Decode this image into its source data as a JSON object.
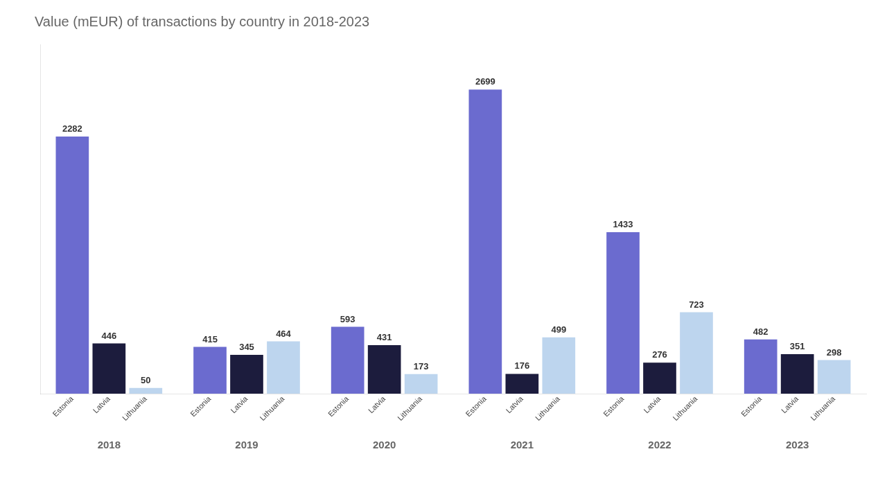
{
  "chart_data": {
    "type": "bar",
    "title": "Value (mEUR) of transactions by country in 2018-2023",
    "categories": [
      "2018",
      "2019",
      "2020",
      "2021",
      "2022",
      "2023"
    ],
    "series": [
      {
        "name": "Estonia",
        "color": "#6B6BCF",
        "values": [
          2282,
          415,
          593,
          2699,
          1433,
          482
        ]
      },
      {
        "name": "Latvia",
        "color": "#1C1C3D",
        "values": [
          446,
          345,
          431,
          176,
          276,
          351
        ]
      },
      {
        "name": "Lithuania",
        "color": "#BDD5EE",
        "values": [
          50,
          464,
          173,
          499,
          723,
          298
        ]
      }
    ],
    "ylim": [
      0,
      3100
    ],
    "data_labels": true,
    "tick_labels": "x",
    "grid": false
  }
}
